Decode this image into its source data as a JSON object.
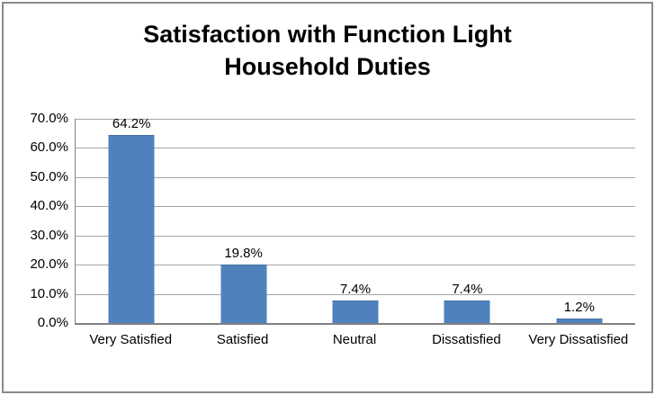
{
  "chart_data": {
    "type": "bar",
    "title": "Satisfaction with Function Light Household Duties",
    "title_lines": [
      "Satisfaction with Function Light",
      "Household Duties"
    ],
    "categories": [
      "Very Satisfied",
      "Satisfied",
      "Neutral",
      "Dissatisfied",
      "Very Dissatisfied"
    ],
    "values": [
      64.2,
      19.8,
      7.4,
      7.4,
      1.2
    ],
    "data_labels": [
      "64.2%",
      "19.8%",
      "7.4%",
      "7.4%",
      "1.2%"
    ],
    "ylim": [
      0,
      70
    ],
    "ytick_step": 10,
    "ytick_labels": [
      "0.0%",
      "10.0%",
      "20.0%",
      "30.0%",
      "40.0%",
      "50.0%",
      "60.0%",
      "70.0%"
    ],
    "xlabel": "",
    "ylabel": "",
    "grid": true,
    "legend": "none",
    "bar_color": "#4f81bd",
    "gridline_color": "#a6a6a6",
    "axis_color": "#808080",
    "border_color": "#8a8a8a"
  }
}
